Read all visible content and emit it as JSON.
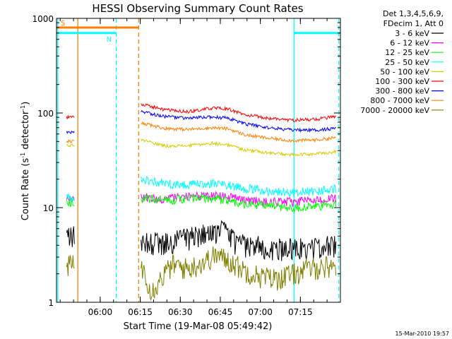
{
  "chart_data": {
    "type": "line",
    "title": "HESSI Observing Summary Count Rates",
    "xlabel": "Start Time (19-Mar-08 05:49:42)",
    "ylabel_parts": [
      "Count Rate (s",
      "-1",
      " detector",
      "-1",
      ")"
    ],
    "y_scale": "log",
    "ylim": [
      1,
      1000
    ],
    "y_ticks": [
      {
        "value": 1,
        "label": "1"
      },
      {
        "value": 10,
        "label": "10"
      },
      {
        "value": 100,
        "label": "100"
      },
      {
        "value": 1000,
        "label": "1000"
      }
    ],
    "xlim": [
      5.727,
      7.5
    ],
    "x_ticks": [
      {
        "value": 6.0,
        "label": "06:00"
      },
      {
        "value": 6.25,
        "label": "06:15"
      },
      {
        "value": 6.5,
        "label": "06:30"
      },
      {
        "value": 6.75,
        "label": "06:45"
      },
      {
        "value": 7.0,
        "label": "07:00"
      },
      {
        "value": 7.25,
        "label": "07:15"
      }
    ],
    "grid": false,
    "legend_position": "right",
    "legend_header": [
      "Det 1,3,4,5,6,9,",
      "FDecim 1, Att 0"
    ],
    "series": [
      {
        "name": "3 - 6 keV",
        "color": "#000000",
        "segments": [
          {
            "x": [
              5.79,
              5.84
            ],
            "y": [
              5,
              5
            ]
          },
          {
            "x": [
              6.255,
              6.4,
              6.55,
              6.7,
              6.78,
              6.85,
              7.0,
              7.15,
              7.28,
              7.475
            ],
            "y": [
              4.5,
              4.2,
              4.8,
              5.5,
              5.8,
              4.2,
              3.9,
              3.7,
              3.8,
              4.0
            ]
          }
        ]
      },
      {
        "name": "6 - 12 keV",
        "color": "#ff00ff",
        "segments": [
          {
            "x": [
              5.79,
              5.84
            ],
            "y": [
              12,
              12
            ]
          },
          {
            "x": [
              6.255,
              6.4,
              6.55,
              6.7,
              6.8,
              6.9,
              7.05,
              7.2,
              7.35,
              7.475
            ],
            "y": [
              13,
              12.5,
              13,
              13.5,
              13,
              12,
              11.5,
              11.5,
              12,
              12.5
            ]
          }
        ]
      },
      {
        "name": "12 - 25 keV",
        "color": "#00ff00",
        "segments": [
          {
            "x": [
              5.79,
              5.84
            ],
            "y": [
              11.5,
              11.5
            ]
          },
          {
            "x": [
              6.255,
              6.4,
              6.55,
              6.7,
              6.8,
              6.9,
              7.05,
              7.2,
              7.35,
              7.475
            ],
            "y": [
              12.5,
              12,
              12.5,
              12.5,
              12,
              11,
              10.5,
              10,
              10.3,
              10.8
            ]
          }
        ]
      },
      {
        "name": "25 - 50 keV",
        "color": "#00ffff",
        "segments": [
          {
            "x": [
              5.79,
              5.84
            ],
            "y": [
              13,
              13
            ]
          },
          {
            "x": [
              6.255,
              6.4,
              6.55,
              6.7,
              6.8,
              6.9,
              7.05,
              7.2,
              7.35,
              7.475
            ],
            "y": [
              20,
              18,
              17.5,
              18,
              17.5,
              16,
              15,
              14.5,
              15,
              16
            ]
          }
        ]
      },
      {
        "name": "50 - 100 keV",
        "color": "#d4cc00",
        "segments": [
          {
            "x": [
              5.79,
              5.84
            ],
            "y": [
              45,
              45
            ]
          },
          {
            "x": [
              6.255,
              6.4,
              6.55,
              6.7,
              6.8,
              6.9,
              7.05,
              7.2,
              7.35,
              7.475
            ],
            "y": [
              52,
              45,
              45,
              48,
              46,
              41,
              38,
              36,
              37,
              39
            ]
          }
        ]
      },
      {
        "name": "100 - 300 keV",
        "color": "#ff0000",
        "segments": [
          {
            "x": [
              5.79,
              5.84
            ],
            "y": [
              90,
              90
            ]
          },
          {
            "x": [
              6.255,
              6.4,
              6.55,
              6.6,
              6.7,
              6.8,
              6.9,
              7.05,
              7.2,
              7.35,
              7.475
            ],
            "y": [
              125,
              108,
              103,
              106,
              113,
              110,
              96,
              88,
              84,
              86,
              92
            ]
          }
        ]
      },
      {
        "name": "300 - 800 keV",
        "color": "#0000ff",
        "segments": [
          {
            "x": [
              5.79,
              5.84
            ],
            "y": [
              62,
              62
            ]
          },
          {
            "x": [
              6.255,
              6.4,
              6.55,
              6.7,
              6.8,
              6.9,
              7.05,
              7.2,
              7.35,
              7.475
            ],
            "y": [
              103,
              92,
              88,
              91,
              88,
              77,
              70,
              66,
              66,
              69
            ]
          }
        ]
      },
      {
        "name": "800 - 7000 keV",
        "color": "#ff8000",
        "segments": [
          {
            "x": [
              5.79,
              5.84
            ],
            "y": [
              50,
              50
            ]
          },
          {
            "x": [
              6.255,
              6.4,
              6.55,
              6.7,
              6.8,
              6.9,
              7.05,
              7.2,
              7.35,
              7.475
            ],
            "y": [
              78,
              69,
              67,
              70,
              68,
              59,
              54,
              51,
              52,
              55
            ]
          }
        ]
      },
      {
        "name": "7000 - 20000 keV",
        "color": "#808000",
        "segments": [
          {
            "x": [
              5.79,
              5.84
            ],
            "y": [
              2.5,
              2.5
            ]
          },
          {
            "x": [
              6.255,
              6.32,
              6.38,
              6.45,
              6.55,
              6.65,
              6.72,
              6.8,
              6.9,
              7.0,
              7.1,
              7.2,
              7.3,
              7.475
            ],
            "y": [
              2.5,
              1.3,
              1.8,
              2.5,
              2.3,
              2.7,
              3.2,
              2.8,
              2.2,
              1.9,
              1.8,
              2.0,
              2.3,
              2.5
            ]
          }
        ]
      }
    ],
    "annotations": [
      {
        "label": "S",
        "color": "#ff8000",
        "x": [
          5.727,
          6.24
        ],
        "y": 800
      },
      {
        "label": "N",
        "color": "#00ffff",
        "x": [
          5.727,
          6.1
        ],
        "y": 700
      },
      {
        "label": "",
        "color": "#00ffff",
        "x": [
          7.21,
          7.5
        ],
        "y": 700
      }
    ],
    "vertical_markers": [
      {
        "x": 5.735,
        "color": "#00ffff",
        "style": "solid"
      },
      {
        "x": 5.86,
        "color": "#ff8000",
        "style": "solid"
      },
      {
        "x": 6.1,
        "color": "#00ffff",
        "style": "dashed"
      },
      {
        "x": 6.24,
        "color": "#ff8000",
        "style": "dashed"
      },
      {
        "x": 7.21,
        "color": "#00ffff",
        "style": "solid"
      },
      {
        "x": 7.49,
        "color": "#00ffff",
        "style": "dashed"
      }
    ]
  },
  "timestamp": "15-Mar-2010 19:57"
}
